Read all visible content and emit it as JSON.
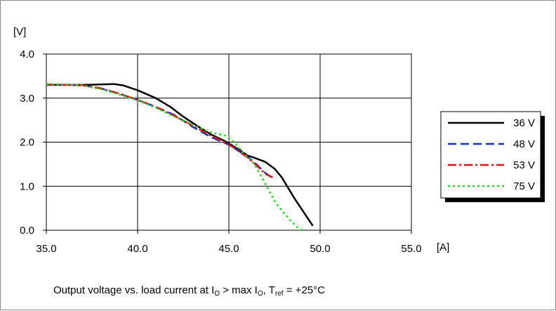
{
  "chart_data": {
    "type": "line",
    "ylabel": "[V]",
    "xlabel": "[A]",
    "xlim": [
      35,
      55
    ],
    "ylim": [
      0,
      4
    ],
    "x_ticks": [
      "35.0",
      "40.0",
      "45.0",
      "50.0",
      "55.0"
    ],
    "y_ticks": [
      "0.0",
      "1.0",
      "2.0",
      "3.0",
      "4.0"
    ],
    "grid": true,
    "legend_position": "right",
    "caption": {
      "part1": "Output voltage vs. load current at I",
      "sub1": "O",
      "part2": " > max I",
      "sub2": "O",
      "part3": ", T",
      "sub3": "ref",
      "part4": " = +25°C"
    },
    "series": [
      {
        "name": "36 V",
        "color": "#000000",
        "dash": "solid",
        "points": [
          [
            35.0,
            3.3
          ],
          [
            36.0,
            3.3
          ],
          [
            37.0,
            3.3
          ],
          [
            38.0,
            3.31
          ],
          [
            38.7,
            3.32
          ],
          [
            39.2,
            3.29
          ],
          [
            40.0,
            3.18
          ],
          [
            41.0,
            3.0
          ],
          [
            41.8,
            2.8
          ],
          [
            42.5,
            2.58
          ],
          [
            43.3,
            2.36
          ],
          [
            44.0,
            2.18
          ],
          [
            44.8,
            2.02
          ],
          [
            45.6,
            1.82
          ],
          [
            46.0,
            1.7
          ],
          [
            46.5,
            1.63
          ],
          [
            47.0,
            1.55
          ],
          [
            47.5,
            1.4
          ],
          [
            47.9,
            1.2
          ],
          [
            48.6,
            0.72
          ],
          [
            49.6,
            0.1
          ]
        ]
      },
      {
        "name": "48 V",
        "color": "#1530d0",
        "dash": "long-dash",
        "points": [
          [
            35.0,
            3.3
          ],
          [
            36.0,
            3.3
          ],
          [
            37.0,
            3.29
          ],
          [
            38.0,
            3.22
          ],
          [
            39.0,
            3.1
          ],
          [
            40.0,
            2.96
          ],
          [
            41.0,
            2.8
          ],
          [
            42.0,
            2.62
          ],
          [
            43.0,
            2.35
          ],
          [
            44.0,
            2.12
          ],
          [
            45.0,
            1.94
          ],
          [
            46.0,
            1.68
          ],
          [
            46.5,
            1.5
          ],
          [
            47.0,
            1.3
          ],
          [
            47.5,
            1.15
          ]
        ]
      },
      {
        "name": "53 V",
        "color": "#e01010",
        "dash": "dash-dot",
        "points": [
          [
            35.0,
            3.31
          ],
          [
            36.0,
            3.3
          ],
          [
            37.0,
            3.29
          ],
          [
            38.0,
            3.22
          ],
          [
            39.0,
            3.1
          ],
          [
            40.0,
            2.96
          ],
          [
            41.0,
            2.8
          ],
          [
            42.0,
            2.6
          ],
          [
            43.0,
            2.38
          ],
          [
            44.0,
            2.15
          ],
          [
            45.0,
            1.95
          ],
          [
            46.0,
            1.66
          ],
          [
            46.5,
            1.48
          ],
          [
            47.0,
            1.28
          ],
          [
            47.4,
            1.2
          ]
        ]
      },
      {
        "name": "75 V",
        "color": "#22dd22",
        "dash": "dotted",
        "points": [
          [
            35.0,
            3.32
          ],
          [
            36.0,
            3.31
          ],
          [
            37.0,
            3.29
          ],
          [
            38.0,
            3.2
          ],
          [
            39.0,
            3.08
          ],
          [
            40.0,
            2.95
          ],
          [
            41.0,
            2.78
          ],
          [
            42.0,
            2.58
          ],
          [
            43.0,
            2.4
          ],
          [
            44.0,
            2.22
          ],
          [
            44.8,
            2.15
          ],
          [
            45.3,
            2.0
          ],
          [
            45.8,
            1.75
          ],
          [
            46.4,
            1.5
          ],
          [
            47.0,
            1.05
          ],
          [
            47.6,
            0.6
          ],
          [
            48.3,
            0.25
          ],
          [
            48.8,
            0.05
          ],
          [
            49.0,
            0.0
          ]
        ]
      }
    ]
  }
}
